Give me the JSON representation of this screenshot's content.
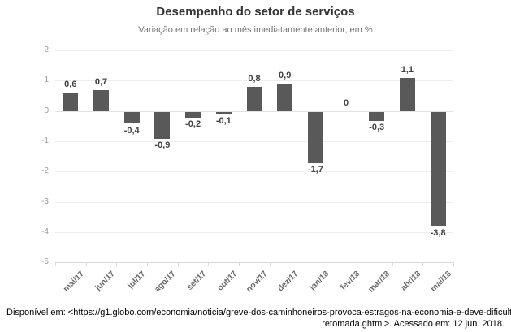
{
  "chart_data": {
    "type": "bar",
    "title": "Desempenho do setor de serviços",
    "subtitle": "Variação em relação ao mês imediatamente anterior, em %",
    "categories": [
      "mai/17",
      "jun/17",
      "jul/17",
      "ago/17",
      "set/17",
      "out/17",
      "nov/17",
      "dez/17",
      "jan/18",
      "fev/18",
      "mar/18",
      "abr/18",
      "mai/18"
    ],
    "values": [
      0.6,
      0.7,
      -0.4,
      -0.9,
      -0.2,
      -0.1,
      0.8,
      0.9,
      -1.7,
      0,
      -0.3,
      1.1,
      -3.8
    ],
    "value_labels": [
      "0,6",
      "0,7",
      "-0,4",
      "-0,9",
      "-0,2",
      "-0,1",
      "0,8",
      "0,9",
      "-1,7",
      "0",
      "-0,3",
      "1,1",
      "-3,8"
    ],
    "xlabel": "",
    "ylabel": "",
    "y_ticks": [
      2,
      1,
      0,
      -1,
      -2,
      -3,
      -4,
      -5
    ],
    "ylim": [
      -5,
      2
    ],
    "grid": true,
    "legend": false,
    "colors": {
      "bar": "#595959",
      "grid_line": "#ededed",
      "zero_line": "#e2e2e2",
      "axis_line": "#d9d9d9",
      "y_tick_label": "#999999",
      "x_tick_label": "#666666",
      "data_label": "#404040",
      "title": "#333333",
      "subtitle": "#757575"
    }
  },
  "footer": {
    "line1": "Disponível em: <https://g1.globo.com/economia/noticia/greve-dos-caminhoneiros-provoca-estragos-na-economia-e-deve-dificultar-",
    "line2": "retomada.ghtml>. Acessado em: 12 jun. 2018."
  }
}
